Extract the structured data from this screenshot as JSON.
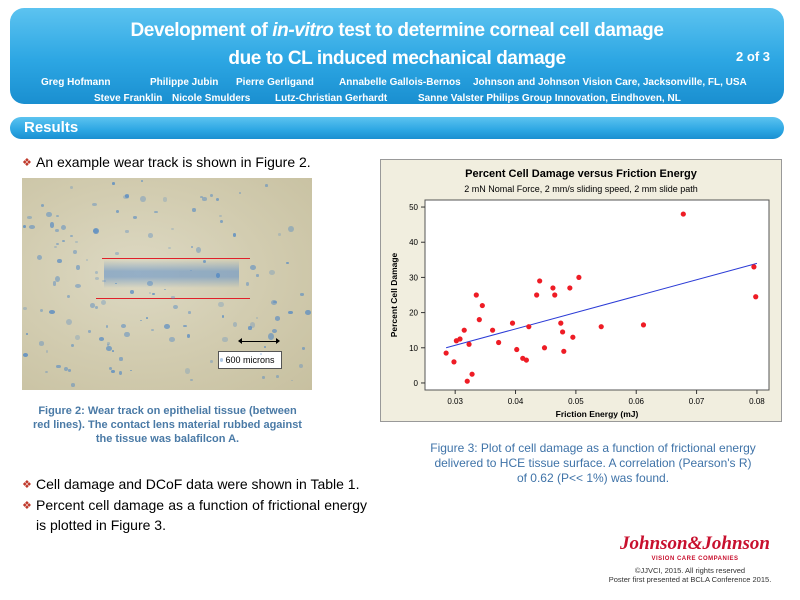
{
  "header": {
    "title_line1_pre": "Development of ",
    "title_line1_em": "in-vitro",
    "title_line1_post": " test to determine corneal cell damage",
    "title_line2": "due to CL induced mechanical damage",
    "page": "2 of 3",
    "authors_row1": [
      "Greg Hofmann",
      "Philippe Jubin",
      "Pierre Gerligand",
      "Annabelle Gallois-Bernos",
      "Johnson and Johnson Vision Care, Jacksonville, FL, USA"
    ],
    "authors_row2": [
      "Steve Franklin",
      "Nicole Smulders",
      "Lutz-Christian Gerhardt",
      "Sanne Valster Philips Group Innovation, Eindhoven, NL"
    ]
  },
  "section": {
    "title": "Results"
  },
  "bullets": {
    "b1": "An example wear track is shown in Figure 2.",
    "b2": "Cell damage and DCoF data were shown in Table 1.",
    "b3": "Percent cell damage as a function of frictional energy is plotted in Figure 3."
  },
  "figure2": {
    "scale_label": "600 microns",
    "caption": "Figure 2: Wear track on epithelial tissue (between red lines). The contact lens material rubbed against the tissue was balafilcon A."
  },
  "figure3": {
    "caption": "Figure 3: Plot of cell damage as a function of frictional energy delivered to HCE tissue surface. A correlation (Pearson's R) of 0.62 (P<< 1%) was found."
  },
  "chart_data": {
    "type": "scatter",
    "title": "Percent Cell Damage versus Friction Energy",
    "subtitle": "2 mN Nomal Force, 2 mm/s sliding speed, 2 mm slide path",
    "xlabel": "Friction Energy (mJ)",
    "ylabel": "Percent Cell Damage",
    "xlim": [
      0.025,
      0.082
    ],
    "ylim": [
      -2,
      52
    ],
    "xticks": [
      0.03,
      0.04,
      0.05,
      0.06,
      0.07,
      0.08
    ],
    "yticks": [
      0,
      10,
      20,
      30,
      40,
      50
    ],
    "point_color": "#ee1c25",
    "fit_color": "#2b3bd6",
    "fit_line": {
      "x": [
        0.0285,
        0.08
      ],
      "y": [
        10.0,
        34.0
      ]
    },
    "points": [
      [
        0.0285,
        8.5
      ],
      [
        0.0298,
        6.0
      ],
      [
        0.0302,
        12.0
      ],
      [
        0.0308,
        12.5
      ],
      [
        0.0315,
        15.0
      ],
      [
        0.032,
        0.5
      ],
      [
        0.0323,
        11.0
      ],
      [
        0.0328,
        2.5
      ],
      [
        0.0335,
        25.0
      ],
      [
        0.034,
        18.0
      ],
      [
        0.0345,
        22.0
      ],
      [
        0.0362,
        15.0
      ],
      [
        0.0372,
        11.5
      ],
      [
        0.0395,
        17.0
      ],
      [
        0.0402,
        9.5
      ],
      [
        0.0412,
        7.0
      ],
      [
        0.0418,
        6.5
      ],
      [
        0.0422,
        16.0
      ],
      [
        0.0435,
        25.0
      ],
      [
        0.044,
        29.0
      ],
      [
        0.0448,
        10.0
      ],
      [
        0.0462,
        27.0
      ],
      [
        0.0465,
        25.0
      ],
      [
        0.0475,
        17.0
      ],
      [
        0.0478,
        14.5
      ],
      [
        0.048,
        9.0
      ],
      [
        0.049,
        27.0
      ],
      [
        0.0495,
        13.0
      ],
      [
        0.0505,
        30.0
      ],
      [
        0.0542,
        16.0
      ],
      [
        0.0612,
        16.5
      ],
      [
        0.0678,
        48.0
      ],
      [
        0.0795,
        33.0
      ],
      [
        0.0798,
        24.5
      ]
    ]
  },
  "footer": {
    "logo": "Johnson&Johnson",
    "logo_sub": "VISION CARE COMPANIES",
    "copyright1": "©JJVCI, 2015. All rights reserved",
    "copyright2": "Poster first presented at BCLA Conference 2015."
  }
}
